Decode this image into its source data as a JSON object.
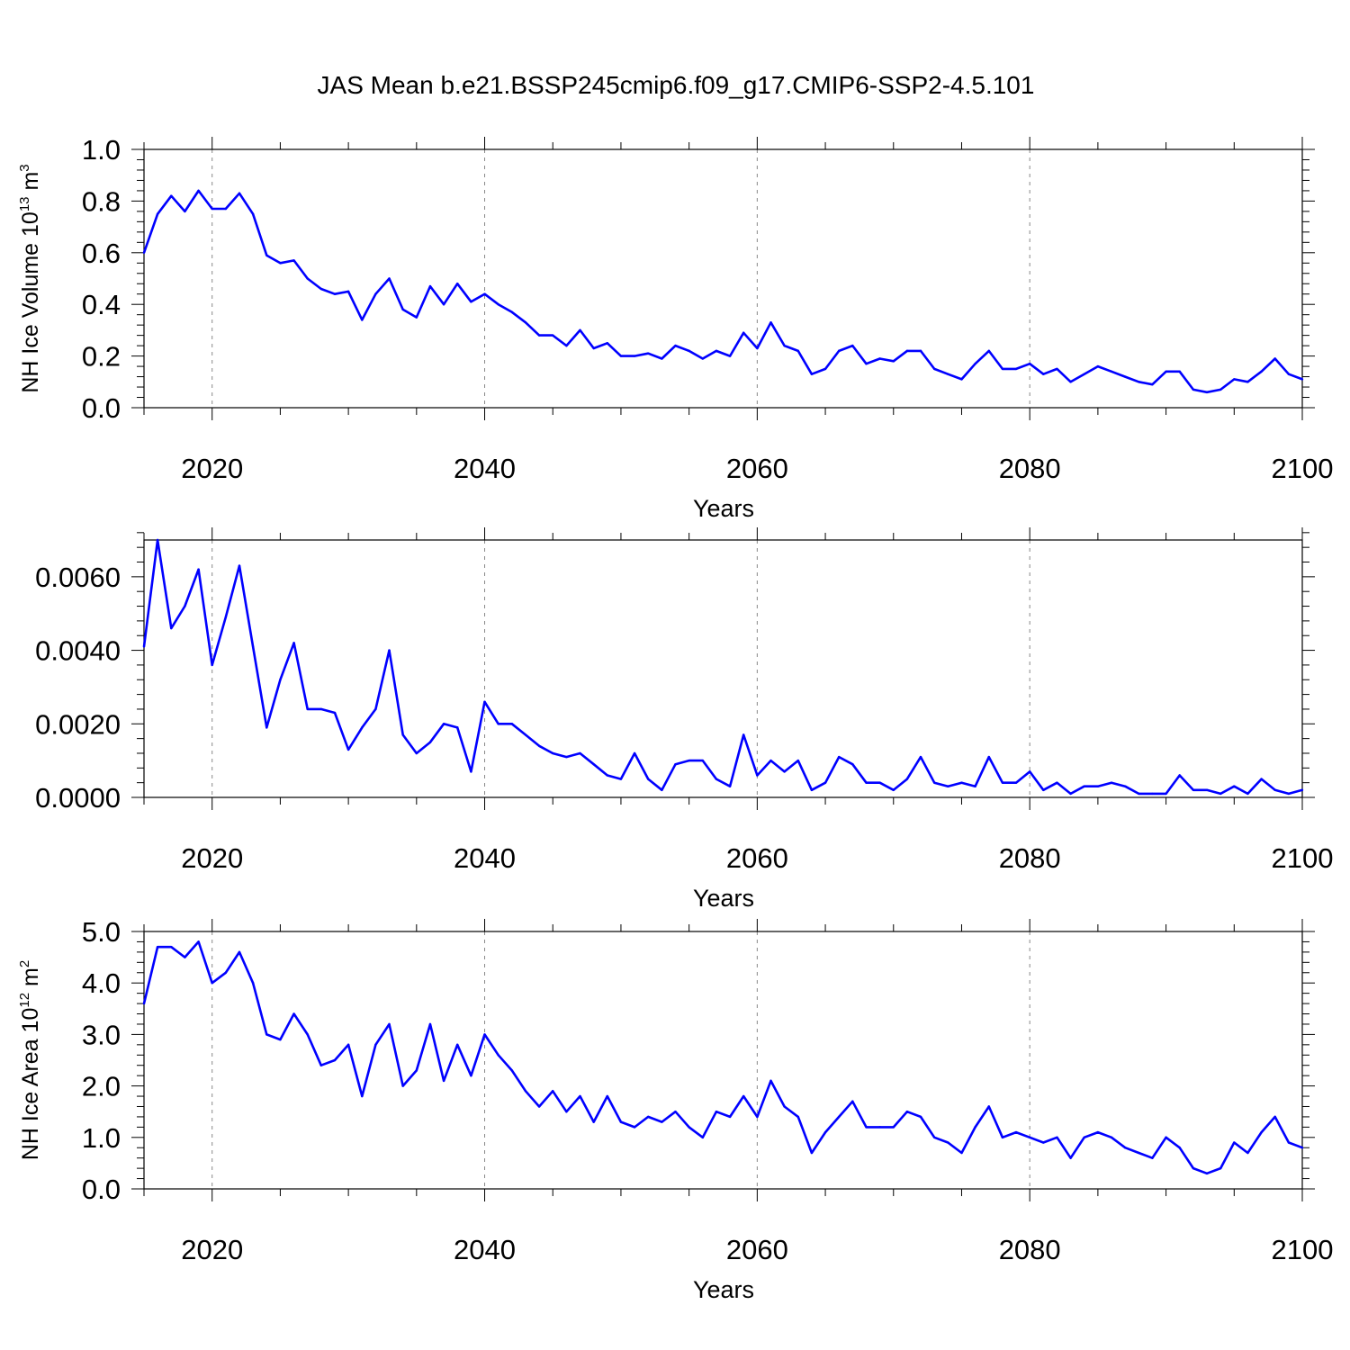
{
  "title": "JAS Mean b.e21.BSSP245cmip6.f09_g17.CMIP6-SSP2-4.5.101",
  "colors": {
    "line": "#0000ff",
    "axis": "#000000",
    "grid": "#888888"
  },
  "chart_data": [
    {
      "type": "line",
      "ylabel": "NH Ice Volume 10",
      "ylabel_exp": "13",
      "ylabel_unit": " m",
      "ylabel_unit_exp": "3",
      "xlabel": "Years",
      "xlim": [
        2015,
        2100
      ],
      "ylim": [
        0,
        1.0
      ],
      "yticks": [
        0.0,
        0.2,
        0.4,
        0.6,
        0.8,
        1.0
      ],
      "ytick_labels": [
        "0.0",
        "0.2",
        "0.4",
        "0.6",
        "0.8",
        "1.0"
      ],
      "xticks": [
        2020,
        2040,
        2060,
        2080,
        2100
      ],
      "xtick_labels": [
        "2020",
        "2040",
        "2060",
        "2080",
        "2100"
      ],
      "grid": "vertical dashed at major x ticks",
      "series": [
        {
          "x": [
            2015,
            2016,
            2017,
            2018,
            2019,
            2020,
            2021,
            2022,
            2023,
            2024,
            2025,
            2026,
            2027,
            2028,
            2029,
            2030,
            2031,
            2032,
            2033,
            2034,
            2035,
            2036,
            2037,
            2038,
            2039,
            2040,
            2041,
            2042,
            2043,
            2044,
            2045,
            2046,
            2047,
            2048,
            2049,
            2050,
            2051,
            2052,
            2053,
            2054,
            2055,
            2056,
            2057,
            2058,
            2059,
            2060,
            2061,
            2062,
            2063,
            2064,
            2065,
            2066,
            2067,
            2068,
            2069,
            2070,
            2071,
            2072,
            2073,
            2074,
            2075,
            2076,
            2077,
            2078,
            2079,
            2080,
            2081,
            2082,
            2083,
            2084,
            2085,
            2086,
            2087,
            2088,
            2089,
            2090,
            2091,
            2092,
            2093,
            2094,
            2095,
            2096,
            2097,
            2098,
            2099,
            2100
          ],
          "y": [
            0.6,
            0.75,
            0.82,
            0.76,
            0.84,
            0.77,
            0.77,
            0.83,
            0.75,
            0.59,
            0.56,
            0.57,
            0.5,
            0.46,
            0.44,
            0.45,
            0.34,
            0.44,
            0.5,
            0.38,
            0.35,
            0.47,
            0.4,
            0.48,
            0.41,
            0.44,
            0.4,
            0.37,
            0.33,
            0.28,
            0.28,
            0.24,
            0.3,
            0.23,
            0.25,
            0.2,
            0.2,
            0.21,
            0.19,
            0.24,
            0.22,
            0.19,
            0.22,
            0.2,
            0.29,
            0.23,
            0.33,
            0.24,
            0.22,
            0.13,
            0.15,
            0.22,
            0.24,
            0.17,
            0.19,
            0.18,
            0.22,
            0.22,
            0.15,
            0.13,
            0.11,
            0.17,
            0.22,
            0.15,
            0.15,
            0.17,
            0.13,
            0.15,
            0.1,
            0.13,
            0.16,
            0.14,
            0.12,
            0.1,
            0.09,
            0.14,
            0.14,
            0.07,
            0.06,
            0.07,
            0.11,
            0.1,
            0.14,
            0.19,
            0.13,
            0.11
          ]
        }
      ]
    },
    {
      "type": "line",
      "ylabel": "",
      "xlabel": "Years",
      "xlim": [
        2015,
        2100
      ],
      "ylim": [
        0,
        0.007
      ],
      "yticks": [
        0.0,
        0.002,
        0.004,
        0.006
      ],
      "ytick_labels": [
        "0.0000",
        "0.0020",
        "0.0040",
        "0.0060"
      ],
      "xticks": [
        2020,
        2040,
        2060,
        2080,
        2100
      ],
      "xtick_labels": [
        "2020",
        "2040",
        "2060",
        "2080",
        "2100"
      ],
      "grid": "vertical dashed at major x ticks",
      "series": [
        {
          "x": [
            2015,
            2016,
            2017,
            2018,
            2019,
            2020,
            2021,
            2022,
            2023,
            2024,
            2025,
            2026,
            2027,
            2028,
            2029,
            2030,
            2031,
            2032,
            2033,
            2034,
            2035,
            2036,
            2037,
            2038,
            2039,
            2040,
            2041,
            2042,
            2043,
            2044,
            2045,
            2046,
            2047,
            2048,
            2049,
            2050,
            2051,
            2052,
            2053,
            2054,
            2055,
            2056,
            2057,
            2058,
            2059,
            2060,
            2061,
            2062,
            2063,
            2064,
            2065,
            2066,
            2067,
            2068,
            2069,
            2070,
            2071,
            2072,
            2073,
            2074,
            2075,
            2076,
            2077,
            2078,
            2079,
            2080,
            2081,
            2082,
            2083,
            2084,
            2085,
            2086,
            2087,
            2088,
            2089,
            2090,
            2091,
            2092,
            2093,
            2094,
            2095,
            2096,
            2097,
            2098,
            2099,
            2100
          ],
          "y": [
            0.0041,
            0.007,
            0.0046,
            0.0052,
            0.0062,
            0.0036,
            0.0049,
            0.0063,
            0.0041,
            0.0019,
            0.0032,
            0.0042,
            0.0024,
            0.0024,
            0.0023,
            0.0013,
            0.0019,
            0.0024,
            0.004,
            0.0017,
            0.0012,
            0.0015,
            0.002,
            0.0019,
            0.0007,
            0.0026,
            0.002,
            0.002,
            0.0017,
            0.0014,
            0.0012,
            0.0011,
            0.0012,
            0.0009,
            0.0006,
            0.0005,
            0.0012,
            0.0005,
            0.0002,
            0.0009,
            0.001,
            0.001,
            0.0005,
            0.0003,
            0.0017,
            0.0006,
            0.001,
            0.0007,
            0.001,
            0.0002,
            0.0004,
            0.0011,
            0.0009,
            0.0004,
            0.0004,
            0.0002,
            0.0005,
            0.0011,
            0.0004,
            0.0003,
            0.0004,
            0.0003,
            0.0011,
            0.0004,
            0.0004,
            0.0007,
            0.0002,
            0.0004,
            0.0001,
            0.0003,
            0.0003,
            0.0004,
            0.0003,
            0.0001,
            0.0001,
            0.0001,
            0.0006,
            0.0002,
            0.0002,
            0.0001,
            0.0003,
            0.0001,
            0.0005,
            0.0002,
            0.0001,
            0.0002
          ]
        }
      ]
    },
    {
      "type": "line",
      "ylabel": "NH Ice Area 10",
      "ylabel_exp": "12",
      "ylabel_unit": " m",
      "ylabel_unit_exp": "2",
      "xlabel": "Years",
      "xlim": [
        2015,
        2100
      ],
      "ylim": [
        0,
        5.0
      ],
      "yticks": [
        0.0,
        1.0,
        2.0,
        3.0,
        4.0,
        5.0
      ],
      "ytick_labels": [
        "0.0",
        "1.0",
        "2.0",
        "3.0",
        "4.0",
        "5.0"
      ],
      "xticks": [
        2020,
        2040,
        2060,
        2080,
        2100
      ],
      "xtick_labels": [
        "2020",
        "2040",
        "2060",
        "2080",
        "2100"
      ],
      "grid": "vertical dashed at major x ticks",
      "series": [
        {
          "x": [
            2015,
            2016,
            2017,
            2018,
            2019,
            2020,
            2021,
            2022,
            2023,
            2024,
            2025,
            2026,
            2027,
            2028,
            2029,
            2030,
            2031,
            2032,
            2033,
            2034,
            2035,
            2036,
            2037,
            2038,
            2039,
            2040,
            2041,
            2042,
            2043,
            2044,
            2045,
            2046,
            2047,
            2048,
            2049,
            2050,
            2051,
            2052,
            2053,
            2054,
            2055,
            2056,
            2057,
            2058,
            2059,
            2060,
            2061,
            2062,
            2063,
            2064,
            2065,
            2066,
            2067,
            2068,
            2069,
            2070,
            2071,
            2072,
            2073,
            2074,
            2075,
            2076,
            2077,
            2078,
            2079,
            2080,
            2081,
            2082,
            2083,
            2084,
            2085,
            2086,
            2087,
            2088,
            2089,
            2090,
            2091,
            2092,
            2093,
            2094,
            2095,
            2096,
            2097,
            2098,
            2099,
            2100
          ],
          "y": [
            3.6,
            4.7,
            4.7,
            4.5,
            4.8,
            4.0,
            4.2,
            4.6,
            4.0,
            3.0,
            2.9,
            3.4,
            3.0,
            2.4,
            2.5,
            2.8,
            1.8,
            2.8,
            3.2,
            2.0,
            2.3,
            3.2,
            2.1,
            2.8,
            2.2,
            3.0,
            2.6,
            2.3,
            1.9,
            1.6,
            1.9,
            1.5,
            1.8,
            1.3,
            1.8,
            1.3,
            1.2,
            1.4,
            1.3,
            1.5,
            1.2,
            1.0,
            1.5,
            1.4,
            1.8,
            1.4,
            2.1,
            1.6,
            1.4,
            0.7,
            1.1,
            1.4,
            1.7,
            1.2,
            1.2,
            1.2,
            1.5,
            1.4,
            1.0,
            0.9,
            0.7,
            1.2,
            1.6,
            1.0,
            1.1,
            1.0,
            0.9,
            1.0,
            0.6,
            1.0,
            1.1,
            1.0,
            0.8,
            0.7,
            0.6,
            1.0,
            0.8,
            0.4,
            0.3,
            0.4,
            0.9,
            0.7,
            1.1,
            1.4,
            0.9,
            0.8
          ]
        }
      ]
    }
  ]
}
